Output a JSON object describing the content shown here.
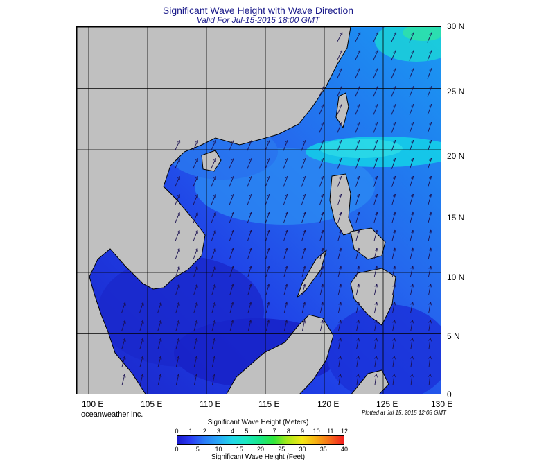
{
  "title": "Significant Wave Height with Wave Direction",
  "subtitle": "Valid For Jul-15-2015 18:00 GMT",
  "credit": "oceanweather inc.",
  "plotted": "Plotted at Jul 15, 2015 12:08 GMT",
  "lat_labels": [
    "30 N",
    "25 N",
    "20 N",
    "15 N",
    "10 N",
    "5 N",
    "0"
  ],
  "lon_labels": [
    "100 E",
    "105 E",
    "110 E",
    "115 E",
    "120 E",
    "125 E",
    "130 E"
  ],
  "colorbar": {
    "title_top": "Significant Wave Height (Meters)",
    "title_bottom": "Significant Wave Height (Feet)",
    "meters_ticks": [
      "0",
      "1",
      "2",
      "3",
      "4",
      "5",
      "6",
      "7",
      "8",
      "9",
      "10",
      "11",
      "12"
    ],
    "feet_ticks": [
      "0",
      "5",
      "10",
      "15",
      "20",
      "25",
      "30",
      "35",
      "40"
    ]
  },
  "map_extent": {
    "lon_min": 99,
    "lon_max": 130,
    "lat_min": 0,
    "lat_max": 30
  },
  "colors": {
    "land": "#c0c0c0",
    "sea_deep": "#1a2fd8",
    "sea_mid": "#2470f0",
    "sea_light": "#1aa8f0",
    "sea_high": "#10e8e8",
    "title": "#1a1a8a"
  },
  "wave_direction": "predominantly toward the northeast (southwest monsoon)"
}
